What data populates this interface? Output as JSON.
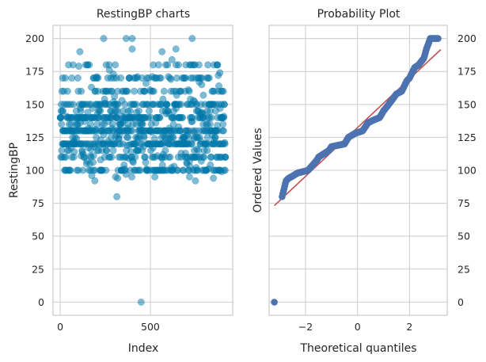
{
  "chart_data": [
    {
      "type": "scatter",
      "title": "RestingBP charts",
      "xlabel": "Index",
      "ylabel": "RestingBP",
      "xlim": [
        -40,
        957
      ],
      "ylim": [
        -10,
        210
      ],
      "xticks": [
        "0",
        "500"
      ],
      "yticks": [
        "0",
        "25",
        "50",
        "75",
        "100",
        "125",
        "150",
        "175",
        "200"
      ],
      "color": "#0077aa",
      "alpha": 0.5,
      "grid": true,
      "n_points": 918,
      "value_levels": [
        100,
        110,
        115,
        120,
        125,
        130,
        135,
        140,
        145,
        150,
        160,
        170,
        180
      ],
      "notable_points": [
        {
          "x": 449,
          "y": 0
        },
        {
          "x": 314,
          "y": 80
        },
        {
          "x": 241,
          "y": 200
        },
        {
          "x": 366,
          "y": 200
        },
        {
          "x": 399,
          "y": 200
        },
        {
          "x": 732,
          "y": 200
        },
        {
          "x": 109,
          "y": 190
        },
        {
          "x": 399,
          "y": 192
        },
        {
          "x": 565,
          "y": 190
        },
        {
          "x": 642,
          "y": 192
        },
        {
          "x": 192,
          "y": 92
        },
        {
          "x": 319,
          "y": 94
        },
        {
          "x": 750,
          "y": 92
        },
        {
          "x": 850,
          "y": 94
        },
        {
          "x": 880,
          "y": 164
        }
      ]
    },
    {
      "type": "scatter",
      "title": "Probability Plot",
      "xlabel": "Theoretical quantiles",
      "ylabel": "Ordered Values",
      "xlim": [
        -3.4,
        3.45
      ],
      "ylim": [
        -10,
        210
      ],
      "xticks": [
        "−2",
        "0",
        "2"
      ],
      "yticks": [
        "0",
        "25",
        "50",
        "75",
        "100",
        "125",
        "150",
        "175",
        "200"
      ],
      "marker_color": "#4c72b0",
      "fit_line_color": "#c44e52",
      "fit_line": {
        "slope": 18.5,
        "intercept": 132.4,
        "x_range": [
          -3.2,
          3.2
        ]
      },
      "grid": true,
      "quantile_points": [
        [
          -3.2,
          0
        ],
        [
          -2.9,
          80
        ],
        [
          -2.75,
          92
        ],
        [
          -2.65,
          94
        ],
        [
          -2.55,
          95
        ],
        [
          -2.3,
          98
        ],
        [
          -1.9,
          100
        ],
        [
          -1.55,
          108
        ],
        [
          -1.5,
          110
        ],
        [
          -1.1,
          115
        ],
        [
          -1.0,
          118
        ],
        [
          -0.5,
          120
        ],
        [
          -0.35,
          125
        ],
        [
          -0.1,
          128
        ],
        [
          0.2,
          130
        ],
        [
          0.4,
          136
        ],
        [
          0.6,
          138
        ],
        [
          0.85,
          140
        ],
        [
          1.0,
          145
        ],
        [
          1.2,
          150
        ],
        [
          1.5,
          158
        ],
        [
          1.7,
          160
        ],
        [
          1.9,
          168
        ],
        [
          2.0,
          170
        ],
        [
          2.05,
          172
        ],
        [
          2.2,
          178
        ],
        [
          2.35,
          180
        ],
        [
          2.55,
          185
        ],
        [
          2.65,
          192
        ],
        [
          2.8,
          200
        ],
        [
          2.95,
          200
        ],
        [
          3.1,
          200
        ]
      ]
    }
  ]
}
